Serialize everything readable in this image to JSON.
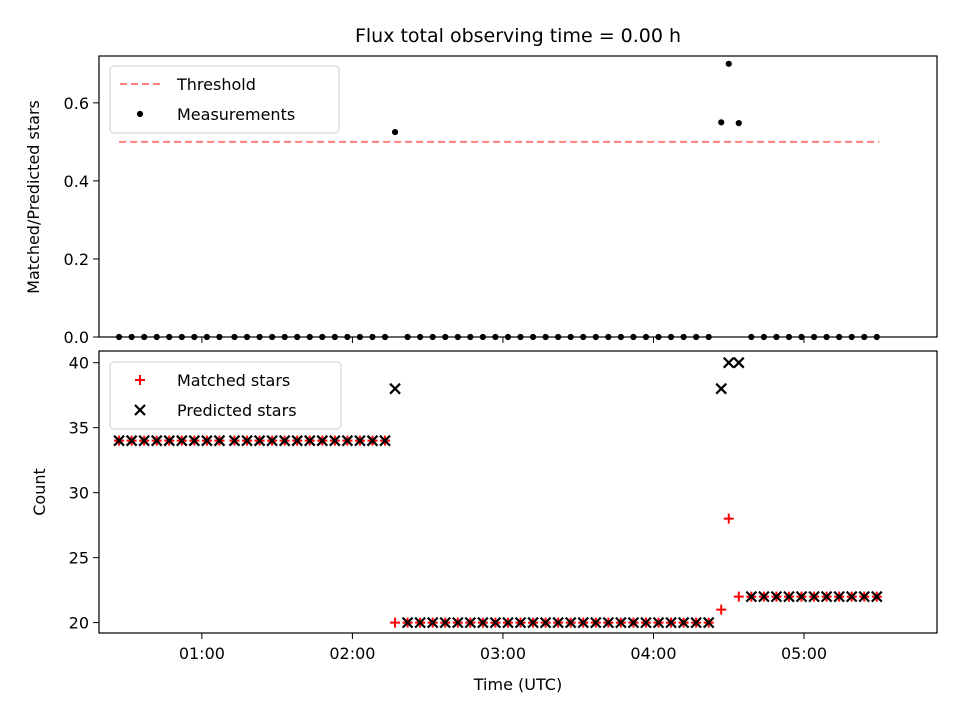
{
  "figure": {
    "background": "#ffffff"
  },
  "chart_data": [
    {
      "type": "scatter",
      "title": "Flux total observing time = 0.00 h",
      "xlabel": "",
      "ylabel": "Matched/Predicted stars",
      "ylim": [
        0,
        0.72
      ],
      "yticks": [
        0.0,
        0.2,
        0.4,
        0.6
      ],
      "ytick_labels": [
        "0.0",
        "0.2",
        "0.4",
        "0.6"
      ],
      "xlim_minutes": [
        19,
        353
      ],
      "xticks_minutes": [
        60,
        120,
        180,
        240,
        300
      ],
      "show_xtick_labels": false,
      "grid": false,
      "legend_position": "top-left",
      "legend": [
        {
          "label": "Threshold",
          "style": "dashed-line",
          "color": "#ff7f7f"
        },
        {
          "label": "Measurements",
          "style": "dot",
          "color": "#000000"
        }
      ],
      "threshold": {
        "name": "Threshold",
        "y": 0.5,
        "x_start_minutes": 27,
        "x_end_minutes": 330,
        "color": "#ff7f7f"
      },
      "series": [
        {
          "name": "Measurements",
          "marker": "dot",
          "color": "#000000",
          "points_minutes": [
            [
              27,
              0
            ],
            [
              32,
              0
            ],
            [
              37,
              0
            ],
            [
              42,
              0
            ],
            [
              47,
              0
            ],
            [
              52,
              0
            ],
            [
              57,
              0
            ],
            [
              62,
              0
            ],
            [
              67,
              0
            ],
            [
              73,
              0
            ],
            [
              78,
              0
            ],
            [
              83,
              0
            ],
            [
              88,
              0
            ],
            [
              93,
              0
            ],
            [
              98,
              0
            ],
            [
              103,
              0
            ],
            [
              108,
              0
            ],
            [
              113,
              0
            ],
            [
              118,
              0
            ],
            [
              123,
              0
            ],
            [
              128,
              0
            ],
            [
              133,
              0
            ],
            [
              137,
              0.525
            ],
            [
              142,
              0
            ],
            [
              147,
              0
            ],
            [
              152,
              0
            ],
            [
              157,
              0
            ],
            [
              162,
              0
            ],
            [
              167,
              0
            ],
            [
              172,
              0
            ],
            [
              177,
              0
            ],
            [
              182,
              0
            ],
            [
              187,
              0
            ],
            [
              192,
              0
            ],
            [
              197,
              0
            ],
            [
              202,
              0
            ],
            [
              207,
              0
            ],
            [
              212,
              0
            ],
            [
              217,
              0
            ],
            [
              222,
              0
            ],
            [
              227,
              0
            ],
            [
              232,
              0
            ],
            [
              237,
              0
            ],
            [
              242,
              0
            ],
            [
              247,
              0
            ],
            [
              252,
              0
            ],
            [
              257,
              0
            ],
            [
              262,
              0
            ],
            [
              267,
              0.55
            ],
            [
              270,
              0.7
            ],
            [
              274,
              0.548
            ],
            [
              279,
              0
            ],
            [
              284,
              0
            ],
            [
              289,
              0
            ],
            [
              294,
              0
            ],
            [
              299,
              0
            ],
            [
              304,
              0
            ],
            [
              309,
              0
            ],
            [
              314,
              0
            ],
            [
              319,
              0
            ],
            [
              324,
              0
            ],
            [
              329,
              0
            ]
          ]
        }
      ]
    },
    {
      "type": "scatter",
      "title": "",
      "xlabel": "Time (UTC)",
      "ylabel": "Count",
      "ylim": [
        19.2,
        40.9
      ],
      "yticks": [
        20,
        25,
        30,
        35,
        40
      ],
      "ytick_labels": [
        "20",
        "25",
        "30",
        "35",
        "40"
      ],
      "xlim_minutes": [
        19,
        353
      ],
      "xticks_minutes": [
        60,
        120,
        180,
        240,
        300
      ],
      "xtick_labels": [
        "01:00",
        "02:00",
        "03:00",
        "04:00",
        "05:00"
      ],
      "grid": false,
      "legend_position": "top-left",
      "legend": [
        {
          "label": "Matched stars",
          "style": "plus",
          "color": "#ff0000"
        },
        {
          "label": "Predicted stars",
          "style": "x",
          "color": "#000000"
        }
      ],
      "series": [
        {
          "name": "Matched stars",
          "marker": "plus",
          "color": "#ff0000",
          "points_minutes": [
            [
              27,
              34
            ],
            [
              32,
              34
            ],
            [
              37,
              34
            ],
            [
              42,
              34
            ],
            [
              47,
              34
            ],
            [
              52,
              34
            ],
            [
              57,
              34
            ],
            [
              62,
              34
            ],
            [
              67,
              34
            ],
            [
              73,
              34
            ],
            [
              78,
              34
            ],
            [
              83,
              34
            ],
            [
              88,
              34
            ],
            [
              93,
              34
            ],
            [
              98,
              34
            ],
            [
              103,
              34
            ],
            [
              108,
              34
            ],
            [
              113,
              34
            ],
            [
              118,
              34
            ],
            [
              123,
              34
            ],
            [
              128,
              34
            ],
            [
              133,
              34
            ],
            [
              137,
              20
            ],
            [
              142,
              20
            ],
            [
              147,
              20
            ],
            [
              152,
              20
            ],
            [
              157,
              20
            ],
            [
              162,
              20
            ],
            [
              167,
              20
            ],
            [
              172,
              20
            ],
            [
              177,
              20
            ],
            [
              182,
              20
            ],
            [
              187,
              20
            ],
            [
              192,
              20
            ],
            [
              197,
              20
            ],
            [
              202,
              20
            ],
            [
              207,
              20
            ],
            [
              212,
              20
            ],
            [
              217,
              20
            ],
            [
              222,
              20
            ],
            [
              227,
              20
            ],
            [
              232,
              20
            ],
            [
              237,
              20
            ],
            [
              242,
              20
            ],
            [
              247,
              20
            ],
            [
              252,
              20
            ],
            [
              257,
              20
            ],
            [
              262,
              20
            ],
            [
              267,
              21
            ],
            [
              270,
              28
            ],
            [
              274,
              22
            ],
            [
              279,
              22
            ],
            [
              284,
              22
            ],
            [
              289,
              22
            ],
            [
              294,
              22
            ],
            [
              299,
              22
            ],
            [
              304,
              22
            ],
            [
              309,
              22
            ],
            [
              314,
              22
            ],
            [
              319,
              22
            ],
            [
              324,
              22
            ],
            [
              329,
              22
            ]
          ]
        },
        {
          "name": "Predicted stars",
          "marker": "x",
          "color": "#000000",
          "points_minutes": [
            [
              27,
              34
            ],
            [
              32,
              34
            ],
            [
              37,
              34
            ],
            [
              42,
              34
            ],
            [
              47,
              34
            ],
            [
              52,
              34
            ],
            [
              57,
              34
            ],
            [
              62,
              34
            ],
            [
              67,
              34
            ],
            [
              73,
              34
            ],
            [
              78,
              34
            ],
            [
              83,
              34
            ],
            [
              88,
              34
            ],
            [
              93,
              34
            ],
            [
              98,
              34
            ],
            [
              103,
              34
            ],
            [
              108,
              34
            ],
            [
              113,
              34
            ],
            [
              118,
              34
            ],
            [
              123,
              34
            ],
            [
              128,
              34
            ],
            [
              133,
              34
            ],
            [
              137,
              38
            ],
            [
              142,
              20
            ],
            [
              147,
              20
            ],
            [
              152,
              20
            ],
            [
              157,
              20
            ],
            [
              162,
              20
            ],
            [
              167,
              20
            ],
            [
              172,
              20
            ],
            [
              177,
              20
            ],
            [
              182,
              20
            ],
            [
              187,
              20
            ],
            [
              192,
              20
            ],
            [
              197,
              20
            ],
            [
              202,
              20
            ],
            [
              207,
              20
            ],
            [
              212,
              20
            ],
            [
              217,
              20
            ],
            [
              222,
              20
            ],
            [
              227,
              20
            ],
            [
              232,
              20
            ],
            [
              237,
              20
            ],
            [
              242,
              20
            ],
            [
              247,
              20
            ],
            [
              252,
              20
            ],
            [
              257,
              20
            ],
            [
              262,
              20
            ],
            [
              267,
              38
            ],
            [
              270,
              40
            ],
            [
              274,
              40
            ],
            [
              279,
              22
            ],
            [
              284,
              22
            ],
            [
              289,
              22
            ],
            [
              294,
              22
            ],
            [
              299,
              22
            ],
            [
              304,
              22
            ],
            [
              309,
              22
            ],
            [
              314,
              22
            ],
            [
              319,
              22
            ],
            [
              324,
              22
            ],
            [
              329,
              22
            ]
          ]
        }
      ]
    }
  ]
}
